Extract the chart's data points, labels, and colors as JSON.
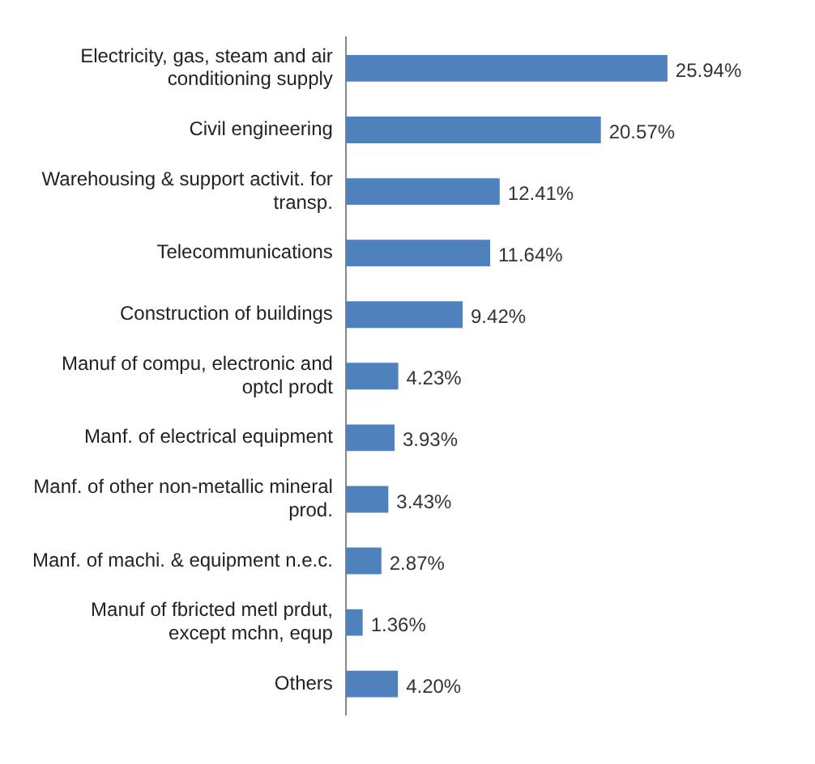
{
  "chart_data": {
    "type": "bar",
    "orientation": "horizontal",
    "categories": [
      "Electricity, gas, steam and air conditioning supply",
      "Civil engineering",
      "Warehousing & support activit. for transp.",
      "Telecommunications",
      "Construction of buildings",
      "Manuf of compu, electronic and optcl prodt",
      "Manf. of electrical equipment",
      "Manf. of other non-metallic mineral prod.",
      "Manf. of machi. & equipment n.e.c.",
      "Manuf of fbricted metl prdut, except mchn, equp",
      "Others"
    ],
    "values": [
      25.94,
      20.57,
      12.41,
      11.64,
      9.42,
      4.23,
      3.93,
      3.43,
      2.87,
      1.36,
      4.2
    ],
    "value_labels": [
      "25.94%",
      "20.57%",
      "12.41%",
      "11.64%",
      "9.42%",
      "4.23%",
      "3.93%",
      "3.43%",
      "2.87%",
      "1.36%",
      "4.20%"
    ],
    "color": "#4f81bd",
    "legend": false
  }
}
